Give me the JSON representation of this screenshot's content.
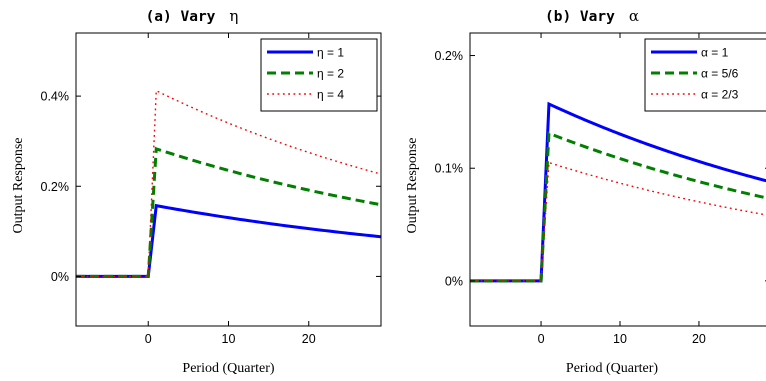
{
  "chart_data": [
    {
      "type": "line",
      "title": "(a) Vary",
      "title_symbol": "η",
      "xlabel": "Period (Quarter)",
      "ylabel": "Output Response",
      "xlim": [
        -9,
        29
      ],
      "ylim": [
        -0.0011,
        0.0054
      ],
      "xticks": [
        0,
        10,
        20
      ],
      "xticklabels": [
        "0",
        "10",
        "20"
      ],
      "yticks": [
        0,
        0.002,
        0.004
      ],
      "yticklabels": [
        "0%",
        "0.2%",
        "0.4%"
      ],
      "grid": false,
      "legend_position": "top-right",
      "x": [
        -9,
        0,
        1,
        29
      ],
      "series": [
        {
          "name": "η = 1",
          "color": "#0000ff",
          "style": "solid",
          "values": [
            0,
            0,
            0.00157,
            0.00088
          ]
        },
        {
          "name": "η = 2",
          "color": "#007f00",
          "style": "dashed",
          "values": [
            0,
            0,
            0.00283,
            0.00159
          ]
        },
        {
          "name": "η = 4",
          "color": "#ff0000",
          "style": "dotted",
          "values": [
            0,
            0,
            0.00412,
            0.00227
          ]
        }
      ]
    },
    {
      "type": "line",
      "title": "(b) Vary",
      "title_symbol": "α",
      "xlabel": "Period (Quarter)",
      "ylabel": "Output Response",
      "xlim": [
        -9,
        29
      ],
      "ylim": [
        -0.0004,
        0.0022
      ],
      "xticks": [
        0,
        10,
        20
      ],
      "xticklabels": [
        "0",
        "10",
        "20"
      ],
      "yticks": [
        0,
        0.001,
        0.002
      ],
      "yticklabels": [
        "0%",
        "0.1%",
        "0.2%"
      ],
      "grid": false,
      "legend_position": "top-right",
      "x": [
        -9,
        0,
        1,
        29
      ],
      "series": [
        {
          "name": "α = 1",
          "color": "#0000ff",
          "style": "solid",
          "values": [
            0,
            0,
            0.00157,
            0.00088
          ]
        },
        {
          "name": "α = 5/6",
          "color": "#007f00",
          "style": "dashed",
          "values": [
            0,
            0,
            0.00131,
            0.00073
          ]
        },
        {
          "name": "α = 2/3",
          "color": "#ff0000",
          "style": "dotted",
          "values": [
            0,
            0,
            0.00105,
            0.00058
          ]
        }
      ]
    }
  ]
}
